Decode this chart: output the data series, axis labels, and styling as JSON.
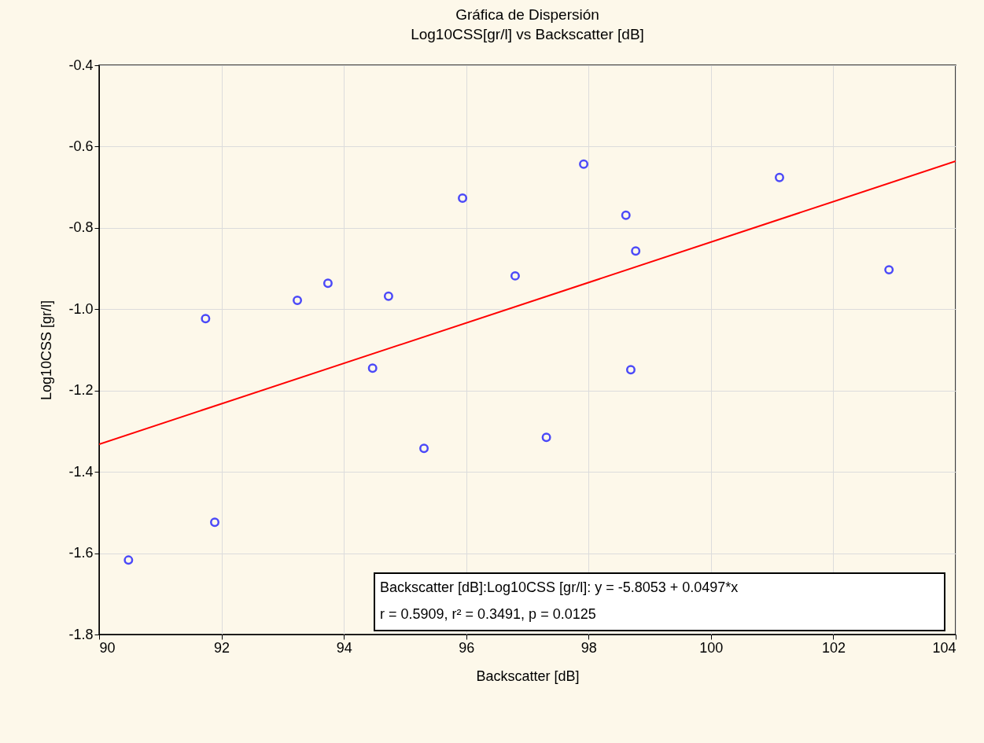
{
  "chart_data": {
    "type": "scatter",
    "title": "Gráfica de Dispersión",
    "subtitle": "Log10CSS[gr/l] vs Backscatter [dB]",
    "xlabel": "Backscatter [dB]",
    "ylabel": "Log10CSS [gr/l]",
    "xlim": [
      90,
      104
    ],
    "xticks": [
      90,
      92,
      94,
      96,
      98,
      100,
      102,
      104
    ],
    "ylim": [
      -1.8,
      -0.4
    ],
    "yticks": [
      -1.8,
      -1.6,
      -1.4,
      -1.2,
      {
        "value": -1.0,
        "label": "-1.0"
      },
      -0.8,
      -0.6,
      -0.4
    ],
    "grid": true,
    "series": [
      {
        "marker": "circle",
        "color": "#0000ff",
        "x": [
          90.48,
          91.74,
          91.89,
          93.24,
          93.74,
          94.47,
          94.73,
          95.31,
          95.94,
          96.8,
          97.31,
          97.92,
          98.61,
          98.69,
          98.77,
          101.12,
          102.91
        ],
        "values": [
          -1.617,
          -1.023,
          -1.524,
          -0.978,
          -0.936,
          -1.145,
          -0.968,
          -1.342,
          -0.727,
          -0.918,
          -1.315,
          -0.643,
          -0.769,
          -1.149,
          -0.857,
          -0.676,
          -0.903
        ]
      },
      {
        "type": "line",
        "color": "#ff0000",
        "x": [
          90,
          104
        ],
        "values": [
          -1.332,
          -0.636
        ]
      }
    ],
    "annotations": [
      "Backscatter [dB]:Log10CSS [gr/l]:     y  = -5.8053 + 0.0497*x",
      "r = 0.5909, r² = 0.3491, p = 0.0125"
    ]
  }
}
